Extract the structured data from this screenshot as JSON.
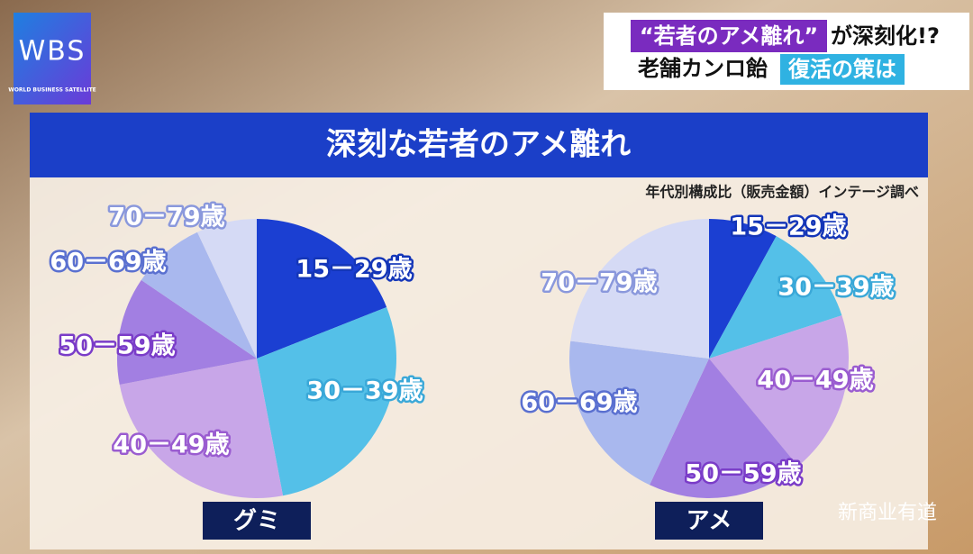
{
  "logo": {
    "letters": "WBS",
    "name": "WORLD BUSINESS SATELLITE"
  },
  "header": {
    "line1_highlight": "“若者のアメ離れ”",
    "line1_rest": "が深刻化!?",
    "line2_plain": "老舗カンロ飴",
    "line2_highlight": "復活の策は"
  },
  "panel": {
    "title": "深刻な若者のアメ離れ",
    "source": "年代別構成比（販売金額）インテージ調べ"
  },
  "watermark": "新商业有道",
  "chart_data": [
    {
      "type": "pie",
      "title": "グミ",
      "categories": [
        "15－29歳",
        "30－39歳",
        "40－49歳",
        "50－59歳",
        "60－69歳",
        "70－79歳"
      ],
      "values": [
        19,
        28,
        25,
        12.5,
        8.5,
        7
      ],
      "colors": [
        "#1b3fd2",
        "#54c0e8",
        "#c8a6e8",
        "#a27fe2",
        "#a9b8ee",
        "#d5daf5"
      ]
    },
    {
      "type": "pie",
      "title": "アメ",
      "categories": [
        "15－29歳",
        "30－39歳",
        "40－49歳",
        "50－59歳",
        "60－69歳",
        "70－79歳"
      ],
      "values": [
        8,
        12,
        19,
        18,
        20,
        23
      ],
      "colors": [
        "#1b3fd2",
        "#54c0e8",
        "#c8a6e8",
        "#a27fe2",
        "#a9b8ee",
        "#d5daf5"
      ]
    }
  ]
}
